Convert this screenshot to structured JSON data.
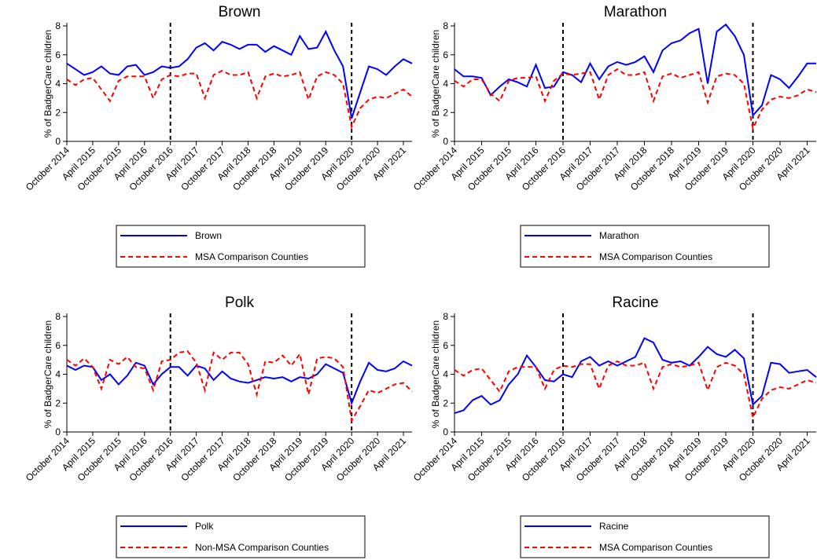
{
  "chart_data": [
    {
      "type": "line",
      "title": "Brown",
      "ylabel": "% of BadgerCare children",
      "categories": [
        "October 2014",
        null,
        null,
        "April 2015",
        null,
        null,
        "October 2015",
        null,
        null,
        "April 2016",
        null,
        null,
        "October 2016",
        null,
        null,
        "April 2017",
        null,
        null,
        "October 2017",
        null,
        null,
        "April 2018",
        null,
        null,
        "October 2018",
        null,
        null,
        "April 2019",
        null,
        null,
        "October 2019",
        null,
        null,
        "April 2020",
        null,
        null,
        "October 2020",
        null,
        null,
        "April 2021",
        null
      ],
      "ylim": [
        0,
        8
      ],
      "yticks": [
        0,
        2,
        4,
        6,
        8
      ],
      "vlines": [
        "October 2016",
        "April 2020"
      ],
      "series": [
        {
          "name": "Brown",
          "color": "#0000ff",
          "dashed": false,
          "values": [
            5.4,
            5.0,
            4.6,
            4.8,
            5.2,
            4.7,
            4.6,
            5.2,
            5.3,
            4.6,
            4.8,
            5.2,
            5.1,
            5.2,
            5.7,
            6.5,
            6.8,
            6.3,
            6.9,
            6.7,
            6.4,
            6.7,
            6.7,
            6.2,
            6.6,
            6.3,
            6.0,
            7.3,
            6.4,
            6.5,
            7.6,
            6.3,
            5.2,
            1.6,
            3.4,
            5.2,
            5.0,
            4.6,
            5.2,
            5.7,
            5.4
          ]
        },
        {
          "name": "MSA Comparison Counties",
          "color": "#ff0000",
          "dashed": true,
          "values": [
            4.3,
            3.9,
            4.3,
            4.4,
            3.6,
            2.8,
            4.2,
            4.5,
            4.5,
            4.5,
            3.0,
            4.3,
            4.6,
            4.5,
            4.7,
            4.7,
            3.0,
            4.6,
            4.9,
            4.6,
            4.6,
            4.8,
            3.0,
            4.5,
            4.7,
            4.5,
            4.6,
            4.8,
            2.9,
            4.5,
            4.8,
            4.6,
            4.0,
            1.0,
            2.3,
            2.9,
            3.1,
            3.0,
            3.3,
            3.6,
            3.1
          ]
        }
      ]
    },
    {
      "type": "line",
      "title": "Marathon",
      "ylabel": "% of BadgerCare children",
      "categories": [
        "October 2014",
        null,
        null,
        "April 2015",
        null,
        null,
        "October 2015",
        null,
        null,
        "April 2016",
        null,
        null,
        "October 2016",
        null,
        null,
        "April 2017",
        null,
        null,
        "October 2017",
        null,
        null,
        "April 2018",
        null,
        null,
        "October 2018",
        null,
        null,
        "April 2019",
        null,
        null,
        "October 2019",
        null,
        null,
        "April 2020",
        null,
        null,
        "October 2020",
        null,
        null,
        "April 2021",
        null
      ],
      "ylim": [
        0,
        8
      ],
      "yticks": [
        0,
        2,
        4,
        6,
        8
      ],
      "vlines": [
        "October 2016",
        "April 2020"
      ],
      "series": [
        {
          "name": "Marathon",
          "color": "#0000ff",
          "dashed": false,
          "values": [
            5.0,
            4.5,
            4.5,
            4.4,
            3.2,
            3.8,
            4.3,
            4.1,
            3.8,
            5.3,
            3.7,
            3.8,
            4.8,
            4.6,
            4.1,
            5.4,
            4.3,
            5.2,
            5.5,
            5.3,
            5.5,
            5.9,
            4.8,
            6.3,
            6.8,
            7.0,
            7.5,
            7.8,
            4.0,
            7.6,
            8.1,
            7.3,
            6.0,
            1.8,
            2.5,
            4.6,
            4.3,
            3.7,
            4.5,
            5.4,
            5.4
          ]
        },
        {
          "name": "MSA Comparison Counties",
          "color": "#ff0000",
          "dashed": true,
          "values": [
            4.2,
            3.8,
            4.3,
            4.3,
            3.3,
            2.8,
            4.2,
            4.4,
            4.4,
            4.5,
            2.8,
            4.2,
            4.7,
            4.6,
            4.7,
            4.8,
            2.9,
            4.6,
            5.0,
            4.6,
            4.6,
            4.8,
            2.8,
            4.5,
            4.7,
            4.4,
            4.6,
            4.8,
            2.7,
            4.5,
            4.7,
            4.6,
            4.0,
            0.9,
            2.2,
            2.9,
            3.1,
            3.0,
            3.2,
            3.6,
            3.4
          ]
        }
      ]
    },
    {
      "type": "line",
      "title": "Polk",
      "ylabel": "% of BadgerCare children",
      "categories": [
        "October 2014",
        null,
        null,
        "April 2015",
        null,
        null,
        "October 2015",
        null,
        null,
        "April 2016",
        null,
        null,
        "October 2016",
        null,
        null,
        "April 2017",
        null,
        null,
        "October 2017",
        null,
        null,
        "April 2018",
        null,
        null,
        "October 2018",
        null,
        null,
        "April 2019",
        null,
        null,
        "October 2019",
        null,
        null,
        "April 2020",
        null,
        null,
        "October 2020",
        null,
        null,
        "April 2021",
        null
      ],
      "ylim": [
        0,
        8
      ],
      "yticks": [
        0,
        2,
        4,
        6,
        8
      ],
      "vlines": [
        "October 2016",
        "April 2020"
      ],
      "series": [
        {
          "name": "Polk",
          "color": "#0000ff",
          "dashed": false,
          "values": [
            4.6,
            4.3,
            4.6,
            4.5,
            3.6,
            4.0,
            3.3,
            3.9,
            4.8,
            4.6,
            3.3,
            4.0,
            4.5,
            4.5,
            3.9,
            4.6,
            4.4,
            3.6,
            4.2,
            3.7,
            3.5,
            3.4,
            3.6,
            3.8,
            3.7,
            3.8,
            3.5,
            3.8,
            3.7,
            4.0,
            4.7,
            4.4,
            4.1,
            2.0,
            3.5,
            4.8,
            4.3,
            4.2,
            4.4,
            4.9,
            4.6
          ]
        },
        {
          "name": "Non-MSA Comparison Counties",
          "color": "#ff0000",
          "dashed": true,
          "values": [
            5.0,
            4.6,
            5.1,
            4.5,
            3.0,
            5.0,
            4.7,
            5.2,
            4.5,
            4.4,
            2.9,
            4.9,
            5.0,
            5.5,
            5.6,
            4.8,
            2.9,
            5.5,
            5.0,
            5.5,
            5.5,
            4.7,
            2.6,
            4.9,
            4.8,
            5.3,
            4.6,
            5.4,
            2.6,
            5.1,
            5.2,
            5.1,
            4.5,
            0.8,
            1.8,
            2.9,
            2.7,
            3.0,
            3.3,
            3.4,
            2.8
          ]
        }
      ]
    },
    {
      "type": "line",
      "title": "Racine",
      "ylabel": "% of BadgerCare children",
      "categories": [
        "October 2014",
        null,
        null,
        "April 2015",
        null,
        null,
        "October 2015",
        null,
        null,
        "April 2016",
        null,
        null,
        "October 2016",
        null,
        null,
        "April 2017",
        null,
        null,
        "October 2017",
        null,
        null,
        "April 2018",
        null,
        null,
        "October 2018",
        null,
        null,
        "April 2019",
        null,
        null,
        "October 2019",
        null,
        null,
        "April 2020",
        null,
        null,
        "October 2020",
        null,
        null,
        "April 2021",
        null
      ],
      "ylim": [
        0,
        8
      ],
      "yticks": [
        0,
        2,
        4,
        6,
        8
      ],
      "vlines": [
        "October 2016",
        "April 2020"
      ],
      "series": [
        {
          "name": "Racine",
          "color": "#0000ff",
          "dashed": false,
          "values": [
            1.3,
            1.5,
            2.2,
            2.5,
            1.9,
            2.2,
            3.3,
            4.0,
            5.3,
            4.5,
            3.6,
            3.5,
            4.0,
            3.8,
            4.9,
            5.2,
            4.6,
            4.9,
            4.6,
            4.9,
            5.2,
            6.5,
            6.2,
            5.0,
            4.8,
            4.9,
            4.6,
            5.2,
            5.9,
            5.4,
            5.2,
            5.7,
            5.1,
            1.9,
            2.5,
            4.8,
            4.7,
            4.1,
            4.2,
            4.3,
            3.8
          ]
        },
        {
          "name": "MSA Comparison Counties",
          "color": "#ff0000",
          "dashed": true,
          "values": [
            4.3,
            3.9,
            4.3,
            4.4,
            3.6,
            2.8,
            4.2,
            4.5,
            4.5,
            4.5,
            3.0,
            4.3,
            4.6,
            4.5,
            4.7,
            4.7,
            3.0,
            4.6,
            4.9,
            4.6,
            4.6,
            4.8,
            3.0,
            4.5,
            4.7,
            4.5,
            4.6,
            4.8,
            2.9,
            4.5,
            4.8,
            4.6,
            4.0,
            1.0,
            2.3,
            2.9,
            3.1,
            3.0,
            3.3,
            3.6,
            3.4
          ]
        }
      ]
    }
  ]
}
